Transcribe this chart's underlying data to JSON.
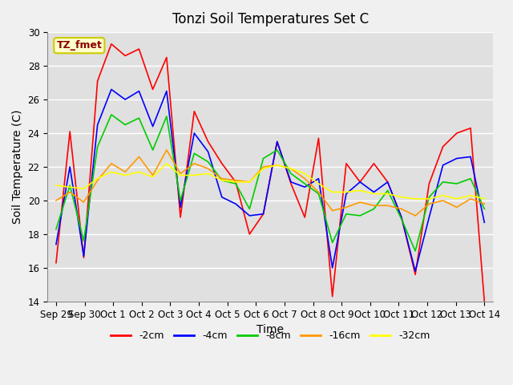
{
  "title": "Tonzi Soil Temperatures Set C",
  "xlabel": "Time",
  "ylabel": "Soil Temperature (C)",
  "ylim": [
    14,
    30
  ],
  "yticks": [
    14,
    16,
    18,
    20,
    22,
    24,
    26,
    28,
    30
  ],
  "x_labels": [
    "Sep 29",
    "Sep 30",
    "Oct 1",
    "Oct 2",
    "Oct 3",
    "Oct 4",
    "Oct 5",
    "Oct 6",
    "Oct 7",
    "Oct 8",
    "Oct 9",
    "Oct 10",
    "Oct 11",
    "Oct 12",
    "Oct 13",
    "Oct 14"
  ],
  "annotation": "TZ_fmet",
  "series": {
    "-2cm": {
      "color": "#ff0000",
      "data": [
        16.3,
        24.1,
        16.6,
        27.1,
        29.3,
        28.6,
        29.0,
        26.6,
        28.5,
        19.0,
        25.3,
        23.5,
        22.2,
        21.1,
        18.0,
        19.2,
        23.5,
        21.0,
        19.0,
        23.7,
        14.3,
        22.2,
        21.1,
        22.2,
        21.1,
        19.0,
        15.6,
        21.0,
        23.2,
        24.0,
        24.3,
        14.0
      ]
    },
    "-4cm": {
      "color": "#0000ff",
      "data": [
        17.4,
        22.0,
        16.7,
        24.5,
        26.6,
        26.0,
        26.5,
        24.4,
        26.5,
        19.6,
        24.0,
        22.9,
        20.2,
        19.8,
        19.1,
        19.2,
        23.5,
        21.1,
        20.8,
        21.3,
        16.0,
        20.4,
        21.1,
        20.5,
        21.1,
        19.0,
        15.8,
        19.0,
        22.1,
        22.5,
        22.6,
        18.7
      ]
    },
    "-8cm": {
      "color": "#00cc00",
      "data": [
        18.3,
        20.9,
        17.6,
        23.2,
        25.1,
        24.5,
        24.9,
        23.0,
        25.0,
        20.0,
        22.8,
        22.3,
        21.2,
        21.0,
        19.5,
        22.5,
        23.0,
        21.6,
        21.0,
        20.4,
        17.5,
        19.2,
        19.1,
        19.5,
        20.6,
        18.9,
        17.0,
        20.2,
        21.1,
        21.0,
        21.3,
        19.5
      ]
    },
    "-16cm": {
      "color": "#ff9900",
      "data": [
        20.0,
        20.5,
        19.9,
        21.2,
        22.2,
        21.7,
        22.6,
        21.5,
        23.0,
        21.6,
        22.2,
        21.9,
        21.3,
        21.2,
        21.1,
        22.0,
        22.1,
        21.9,
        21.3,
        20.5,
        19.4,
        19.6,
        19.9,
        19.7,
        19.7,
        19.5,
        19.1,
        19.8,
        20.0,
        19.6,
        20.1,
        19.8
      ]
    },
    "-32cm": {
      "color": "#ffff00",
      "data": [
        20.9,
        20.8,
        20.7,
        21.3,
        21.7,
        21.5,
        21.7,
        21.4,
        22.2,
        21.5,
        21.5,
        21.6,
        21.2,
        21.1,
        21.1,
        21.9,
        22.1,
        21.9,
        21.6,
        21.0,
        20.5,
        20.5,
        20.6,
        20.4,
        20.4,
        20.2,
        20.1,
        20.1,
        20.3,
        20.1,
        20.3,
        20.1
      ]
    }
  },
  "legend_order": [
    "-2cm",
    "-4cm",
    "-8cm",
    "-16cm",
    "-32cm"
  ],
  "plot_bg_color": "#e0e0e0",
  "fig_bg_color": "#f0f0f0",
  "title_fontsize": 12,
  "axis_label_fontsize": 10,
  "tick_fontsize": 8.5
}
